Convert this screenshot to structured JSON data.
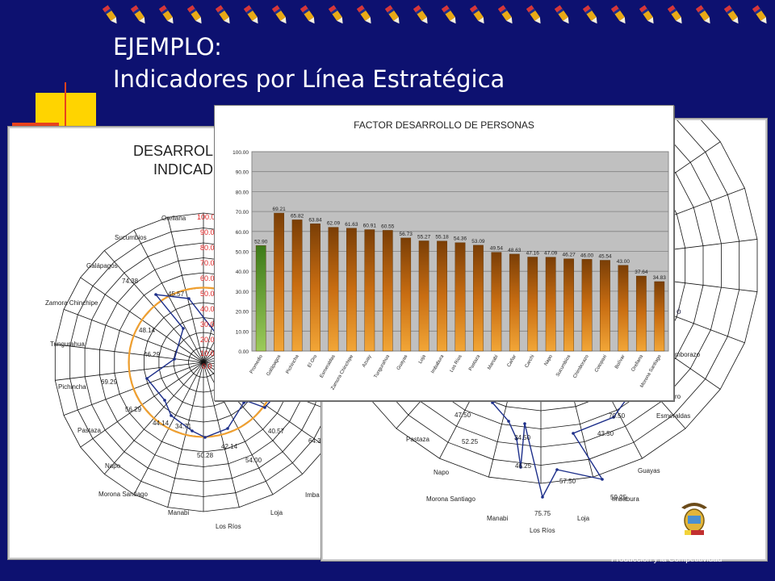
{
  "slide": {
    "title_line1": "EJEMPLO:",
    "title_line2": "Indicadores por Línea Estratégica",
    "footer": "Producción y la Competitividad"
  },
  "colors": {
    "background": "#0d1170",
    "bar_orange": "#e08a1e",
    "bar_green": "#7ab648",
    "radar_line": "#1d2f8a",
    "radar_threshold": "#f0a030",
    "scale_red": "#e02020"
  },
  "left_radar": {
    "title_lines": [
      "DESARROLL",
      "INDICAD"
    ],
    "scale_labels": [
      "100.0",
      "90.0",
      "80.0",
      "70.0",
      "60.0",
      "50.0",
      "40.0",
      "30.0",
      "20.0",
      "10.0",
      "0.0"
    ],
    "axes": [
      "Orellana",
      "Sucumbios",
      "Galápagos",
      "Zamora Chinchipe",
      "Tungurahua",
      "Pichincha",
      "Pastaza",
      "Napo",
      "Morona Santiago",
      "Manabi",
      "Los Ríos",
      "Loja",
      "Imba"
    ],
    "value_labels": [
      "45.57",
      "74.38",
      "48.14",
      "46.29",
      "69.29",
      "56.29",
      "44.14",
      "34.71",
      "42.14",
      "50.28",
      "54.00",
      "40.57",
      "64.3"
    ]
  },
  "right_radar": {
    "axes_right": [
      "mborazo",
      "ro",
      "Esmeraldas",
      "Guayas",
      "Imbabura",
      "Loja"
    ],
    "axes_left": [
      "Pastaza",
      "Napo",
      "Morona Santiago",
      "Manabi",
      "Los Ríos"
    ],
    "value_labels": [
      "47.50",
      "52.25",
      "34.50",
      "46.25",
      "75.75",
      "57.50",
      "59.25",
      "43.50",
      "70.50"
    ],
    "fragment": "ó"
  },
  "chart_data": {
    "type": "bar",
    "title": "FACTOR DESARROLLO DE PERSONAS",
    "categories": [
      "Promedio",
      "Galápagos",
      "Pichincha",
      "El Oro",
      "Esmeraldas",
      "Zamora Chinchipe",
      "Azuay",
      "Tungurahua",
      "Guayas",
      "Loja",
      "Imbabura",
      "Los Ríos",
      "Pastaza",
      "Manabí",
      "Cañar",
      "Carchi",
      "Napo",
      "Sucumbíos",
      "Chimborazo",
      "Cotopaxi",
      "Bolívar",
      "Orellana",
      "Morona Santiago"
    ],
    "values": [
      52.9,
      69.21,
      65.82,
      63.84,
      62.09,
      61.63,
      60.91,
      60.55,
      56.73,
      55.27,
      55.18,
      54.36,
      53.09,
      49.54,
      48.63,
      47.16,
      47.09,
      46.27,
      46.0,
      45.54,
      43.0,
      37.64,
      34.83
    ],
    "value_labels": [
      "52.90",
      "69.21",
      "65.82",
      "63.84",
      "62.09",
      "61.63",
      "60.91",
      "60.55",
      "56.73",
      "55.27",
      "55.18",
      "54.36",
      "53.09",
      "49.54",
      "48.63",
      "47.16",
      "47.09",
      "46.27",
      "46.00",
      "45.54",
      "43.00",
      "37.64",
      "34.83"
    ],
    "ylim": [
      0,
      100
    ],
    "ytick_labels": [
      "100.00",
      "90.00",
      "80.00",
      "70.00",
      "60.00",
      "50.00",
      "40.00",
      "30.00",
      "20.00",
      "10.00",
      "0.00"
    ],
    "grid": true,
    "xlabel": "",
    "ylabel": ""
  }
}
